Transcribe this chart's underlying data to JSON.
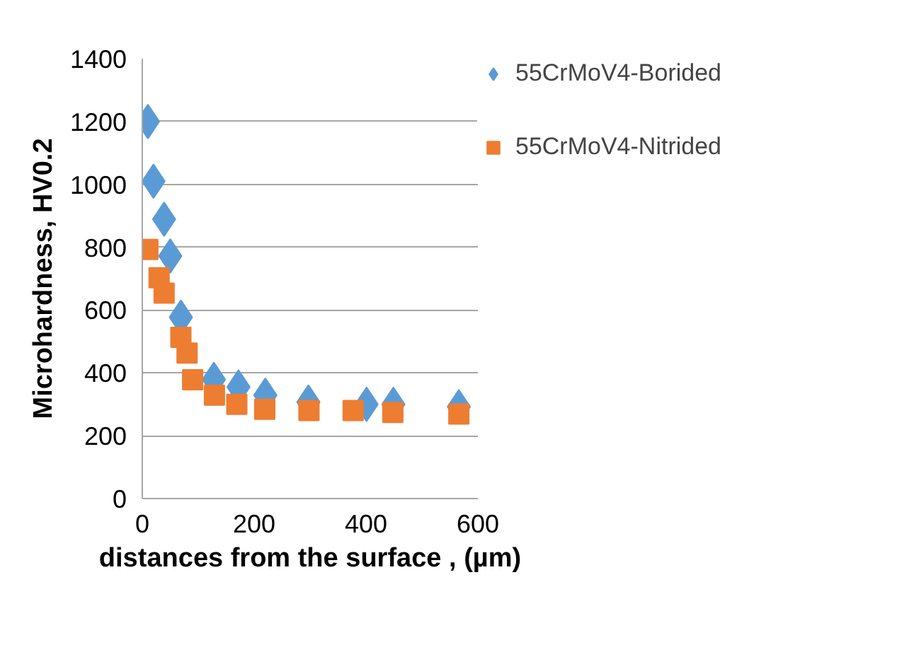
{
  "chart_data": {
    "type": "scatter",
    "xlabel": "distances from the surface , (µm)",
    "ylabel": "Microhardness, HV0.2",
    "xlim": [
      0,
      600
    ],
    "xticks": [
      0,
      200,
      400,
      600
    ],
    "ylim": [
      0,
      1400
    ],
    "yticks": [
      0,
      200,
      400,
      600,
      800,
      1000,
      1200,
      1400
    ],
    "grid": "y",
    "legend": "right",
    "series": [
      {
        "name": "55CrMoV4-Borided",
        "color": "#5b9bd5",
        "marker": "diamond",
        "x": [
          10,
          20,
          39,
          50,
          69,
          88,
          128,
          172,
          220,
          297,
          401,
          449,
          566
        ],
        "values": [
          1200,
          1010,
          889,
          772,
          577,
          null,
          379,
          355,
          329,
          307,
          300,
          300,
          292
        ]
      },
      {
        "name": "55CrMoV4-Nitrided",
        "color": "#ed7d31",
        "marker": "square",
        "x": [
          10,
          30,
          39,
          69,
          80,
          90,
          129,
          169,
          219,
          298,
          377,
          448,
          566
        ],
        "values": [
          793,
          703,
          654,
          513,
          463,
          378,
          329,
          300,
          284,
          280,
          280,
          274,
          269
        ]
      }
    ]
  }
}
